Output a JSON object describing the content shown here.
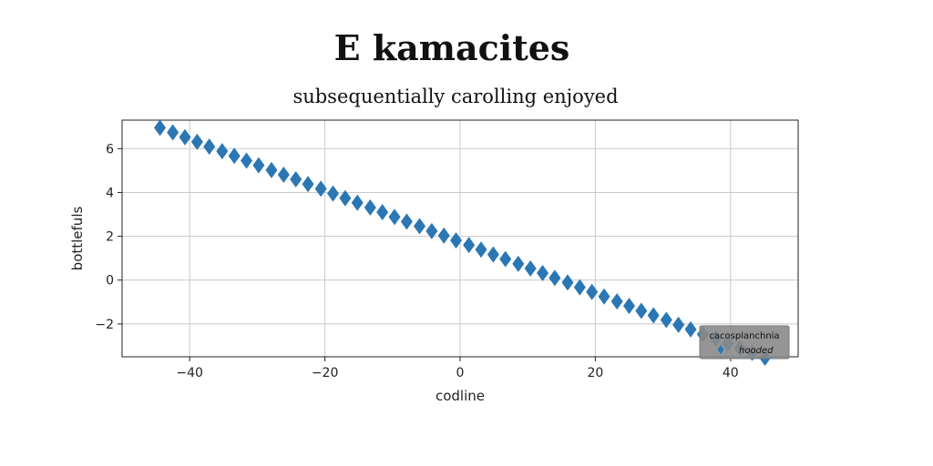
{
  "chart_data": {
    "type": "scatter",
    "title": "E kamacites",
    "subtitle": "subsequentially carolling enjoyed",
    "xlabel": "codline",
    "ylabel": "bottlefuls",
    "xlim": [
      -50,
      50
    ],
    "ylim": [
      -3.5,
      7.3
    ],
    "xticks": [
      -40,
      -20,
      0,
      20,
      40
    ],
    "yticks": [
      -2,
      0,
      2,
      4,
      6
    ],
    "xtick_labels": [
      "−40",
      "−20",
      "0",
      "20",
      "40"
    ],
    "ytick_labels": [
      "−2",
      "0",
      "2",
      "4",
      "6"
    ],
    "grid": true,
    "marker": "diamond",
    "color": "#2a77b4",
    "legend": {
      "title": "cacosplanchnia",
      "position": "lower-right"
    },
    "series": [
      {
        "name": "hooded",
        "x": [
          -44.4,
          -42.5,
          -40.7,
          -38.9,
          -37.1,
          -35.2,
          -33.4,
          -31.6,
          -29.8,
          -27.9,
          -26.1,
          -24.3,
          -22.5,
          -20.6,
          -18.8,
          -17.0,
          -15.2,
          -13.3,
          -11.5,
          -9.7,
          -7.9,
          -6.0,
          -4.2,
          -2.4,
          -0.6,
          1.3,
          3.1,
          4.9,
          6.7,
          8.6,
          10.4,
          12.2,
          14.0,
          15.9,
          17.7,
          19.5,
          21.3,
          23.2,
          25.0,
          26.8,
          28.6,
          30.5,
          32.3,
          34.1,
          35.9,
          37.8,
          39.6,
          41.4,
          43.2,
          45.1
        ],
        "y": [
          6.95,
          6.74,
          6.52,
          6.31,
          6.09,
          5.88,
          5.67,
          5.45,
          5.24,
          5.02,
          4.81,
          4.6,
          4.38,
          4.17,
          3.95,
          3.74,
          3.53,
          3.31,
          3.1,
          2.88,
          2.67,
          2.46,
          2.24,
          2.03,
          1.81,
          1.6,
          1.39,
          1.17,
          0.96,
          0.74,
          0.53,
          0.32,
          0.1,
          -0.11,
          -0.33,
          -0.54,
          -0.75,
          -0.97,
          -1.18,
          -1.4,
          -1.61,
          -1.82,
          -2.04,
          -2.25,
          -2.47,
          -2.68,
          -2.89,
          -3.11,
          -3.32,
          -3.54
        ]
      }
    ]
  }
}
